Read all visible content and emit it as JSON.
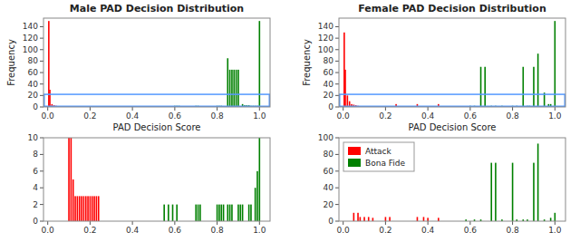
{
  "chart_data": [
    {
      "type": "bar",
      "title": "Male PAD Decision Distribution",
      "x_label": "PAD Decision Score",
      "y_label": "Frequency",
      "xlim": [
        -0.02,
        1.05
      ],
      "ylim": [
        0,
        155
      ],
      "xticks": [
        {
          "value": 0.0,
          "label": "0.0"
        },
        0.2,
        0.4,
        0.6,
        0.8,
        {
          "value": 1.0,
          "label": "1.0"
        }
      ],
      "yticks": [
        0,
        20,
        40,
        60,
        80,
        100,
        120,
        140
      ],
      "zoom": {
        "ylim": [
          0,
          22
        ],
        "color": "#5599ff"
      },
      "series": [
        {
          "color": "#ff0000",
          "x": [
            0.005,
            0.01,
            0.02,
            0.03,
            0.04,
            0.05,
            0.06,
            0.07,
            0.08,
            0.09,
            0.1,
            0.11,
            0.12,
            0.13,
            0.14,
            0.15
          ],
          "values": [
            150,
            30,
            5,
            3,
            2,
            1,
            1,
            1,
            1,
            1,
            1,
            1,
            1,
            1,
            1,
            1
          ]
        },
        {
          "color": "#008000",
          "x": [
            0.92,
            0.93,
            0.94,
            0.95,
            0.96,
            0.97,
            0.98,
            0.99,
            1.0,
            0.6,
            0.61,
            0.62,
            0.7,
            0.71,
            0.8,
            0.81,
            0.82,
            0.85,
            0.86,
            0.87,
            0.88,
            0.89,
            0.9
          ],
          "values": [
            5,
            3,
            3,
            3,
            2,
            2,
            2,
            2,
            150,
            2,
            2,
            2,
            2,
            2,
            2,
            2,
            2,
            85,
            65,
            65,
            65,
            65,
            65
          ]
        }
      ]
    },
    {
      "type": "bar",
      "xlim": [
        -0.02,
        1.05
      ],
      "ylim": [
        0,
        10
      ],
      "xticks": [
        {
          "value": 0.0,
          "label": "0.0"
        },
        0.2,
        0.4,
        0.6,
        0.8,
        {
          "value": 1.0,
          "label": "1.0"
        }
      ],
      "yticks": [
        0,
        2,
        4,
        6,
        8,
        10
      ],
      "series": [
        {
          "color": "#ff0000",
          "x": [
            0.1,
            0.11,
            0.12,
            0.13,
            0.14,
            0.15,
            0.16,
            0.17,
            0.18,
            0.19,
            0.2,
            0.21,
            0.22,
            0.23,
            0.24
          ],
          "values": [
            10,
            10,
            5,
            3,
            3,
            3,
            3,
            3,
            3,
            3,
            3,
            3,
            3,
            3,
            3
          ]
        },
        {
          "color": "#008000",
          "x": [
            0.55,
            0.57,
            0.59,
            0.61,
            0.7,
            0.71,
            0.72,
            0.8,
            0.81,
            0.82,
            0.83,
            0.85,
            0.86,
            0.87,
            0.9,
            0.91,
            0.92,
            0.95,
            0.96,
            0.98,
            0.99,
            1.0
          ],
          "values": [
            2,
            2,
            2,
            2,
            2,
            2,
            2,
            2,
            2,
            2,
            2,
            2,
            2,
            2,
            2,
            2,
            2,
            2,
            2,
            4,
            6,
            10
          ]
        }
      ]
    },
    {
      "type": "bar",
      "title": "Female PAD Decision Distribution",
      "x_label": "PAD Decision Score",
      "y_label": "Frequency",
      "xlim": [
        -0.02,
        1.05
      ],
      "ylim": [
        0,
        155
      ],
      "xticks": [
        {
          "value": 0.0,
          "label": "0.0"
        },
        0.2,
        0.4,
        0.6,
        0.8,
        {
          "value": 1.0,
          "label": "1.0"
        }
      ],
      "yticks": [
        0,
        20,
        40,
        60,
        80,
        100,
        120,
        140
      ],
      "zoom": {
        "ylim": [
          0,
          22
        ],
        "color": "#5599ff"
      },
      "series": [
        {
          "color": "#ff0000",
          "x": [
            0.005,
            0.01,
            0.02,
            0.03,
            0.04,
            0.05,
            0.06,
            0.07,
            0.08,
            0.25,
            0.35,
            0.45
          ],
          "values": [
            130,
            65,
            20,
            10,
            5,
            4,
            3,
            2,
            1,
            5,
            5,
            5
          ]
        },
        {
          "color": "#008000",
          "x": [
            0.6,
            0.62,
            0.65,
            0.67,
            0.7,
            0.72,
            0.75,
            0.8,
            0.82,
            0.85,
            0.87,
            0.88,
            0.9,
            0.92,
            0.95,
            0.97,
            0.98,
            1.0
          ],
          "values": [
            2,
            2,
            70,
            70,
            2,
            2,
            2,
            2,
            2,
            70,
            2,
            2,
            70,
            93,
            25,
            5,
            5,
            150
          ]
        }
      ]
    },
    {
      "type": "bar",
      "xlim": [
        -0.02,
        1.05
      ],
      "ylim": [
        0,
        100
      ],
      "xticks": [
        {
          "value": 0.0,
          "label": "0.0"
        },
        0.2,
        0.4,
        0.6,
        0.8,
        {
          "value": 1.0,
          "label": "1.0"
        }
      ],
      "yticks": [
        0,
        20,
        40,
        60,
        80,
        100
      ],
      "legend": "upper left",
      "series": [
        {
          "name": "Attack",
          "color": "#ff0000",
          "x": [
            0.05,
            0.07,
            0.08,
            0.1,
            0.12,
            0.14,
            0.2,
            0.22,
            0.35,
            0.38,
            0.4,
            0.45
          ],
          "values": [
            10,
            10,
            5,
            5,
            5,
            4,
            5,
            5,
            5,
            5,
            4,
            4
          ]
        },
        {
          "name": "Bona Fide",
          "color": "#008000",
          "x": [
            0.58,
            0.62,
            0.65,
            0.7,
            0.72,
            0.75,
            0.8,
            0.82,
            0.85,
            0.87,
            0.9,
            0.92,
            0.95,
            0.98,
            1.0
          ],
          "values": [
            2,
            2,
            2,
            70,
            70,
            2,
            70,
            2,
            2,
            2,
            70,
            93,
            2,
            4,
            10
          ]
        }
      ]
    }
  ]
}
